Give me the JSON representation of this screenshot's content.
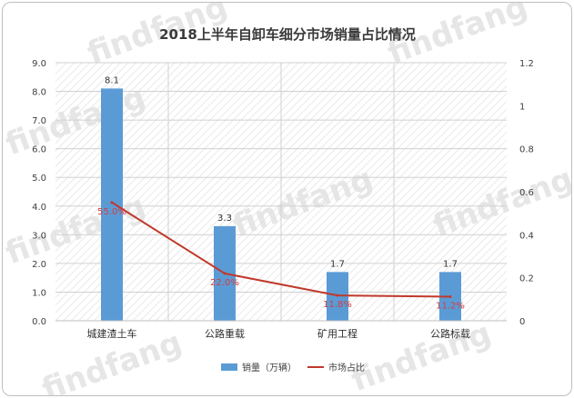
{
  "watermark_text": "findfang",
  "chart_data": {
    "type": "bar",
    "title": "2018上半年自卸车细分市场销量占比情况",
    "categories": [
      "城建渣土车",
      "公路重载",
      "矿用工程",
      "公路标载"
    ],
    "series": [
      {
        "name": "销量（万辆）",
        "kind": "bar",
        "axis": "left",
        "color": "#5b9bd5",
        "values": [
          8.1,
          3.3,
          1.7,
          1.7
        ],
        "labels": [
          "8.1",
          "3.3",
          "1.7",
          "1.7"
        ]
      },
      {
        "name": "市场占比",
        "kind": "line",
        "axis": "right",
        "color": "#c0392b",
        "values": [
          0.55,
          0.22,
          0.118,
          0.112
        ],
        "labels": [
          "55.0%",
          "22.0%",
          "11.8%",
          "11.2%"
        ]
      }
    ],
    "y_left": {
      "min": 0,
      "max": 9,
      "ticks": [
        0,
        1,
        2,
        3,
        4,
        5,
        6,
        7,
        8,
        9
      ],
      "tick_labels": [
        "0.0",
        "1.0",
        "2.0",
        "3.0",
        "4.0",
        "5.0",
        "6.0",
        "7.0",
        "8.0",
        "9.0"
      ]
    },
    "y_right": {
      "min": 0,
      "max": 1.2,
      "ticks": [
        0,
        0.2,
        0.4,
        0.6,
        0.8,
        1,
        1.2
      ],
      "tick_labels": [
        "0",
        "0.2",
        "0.4",
        "0.6",
        "0.8",
        "1",
        "1.2"
      ]
    },
    "grid": true,
    "legend_position": "bottom"
  }
}
